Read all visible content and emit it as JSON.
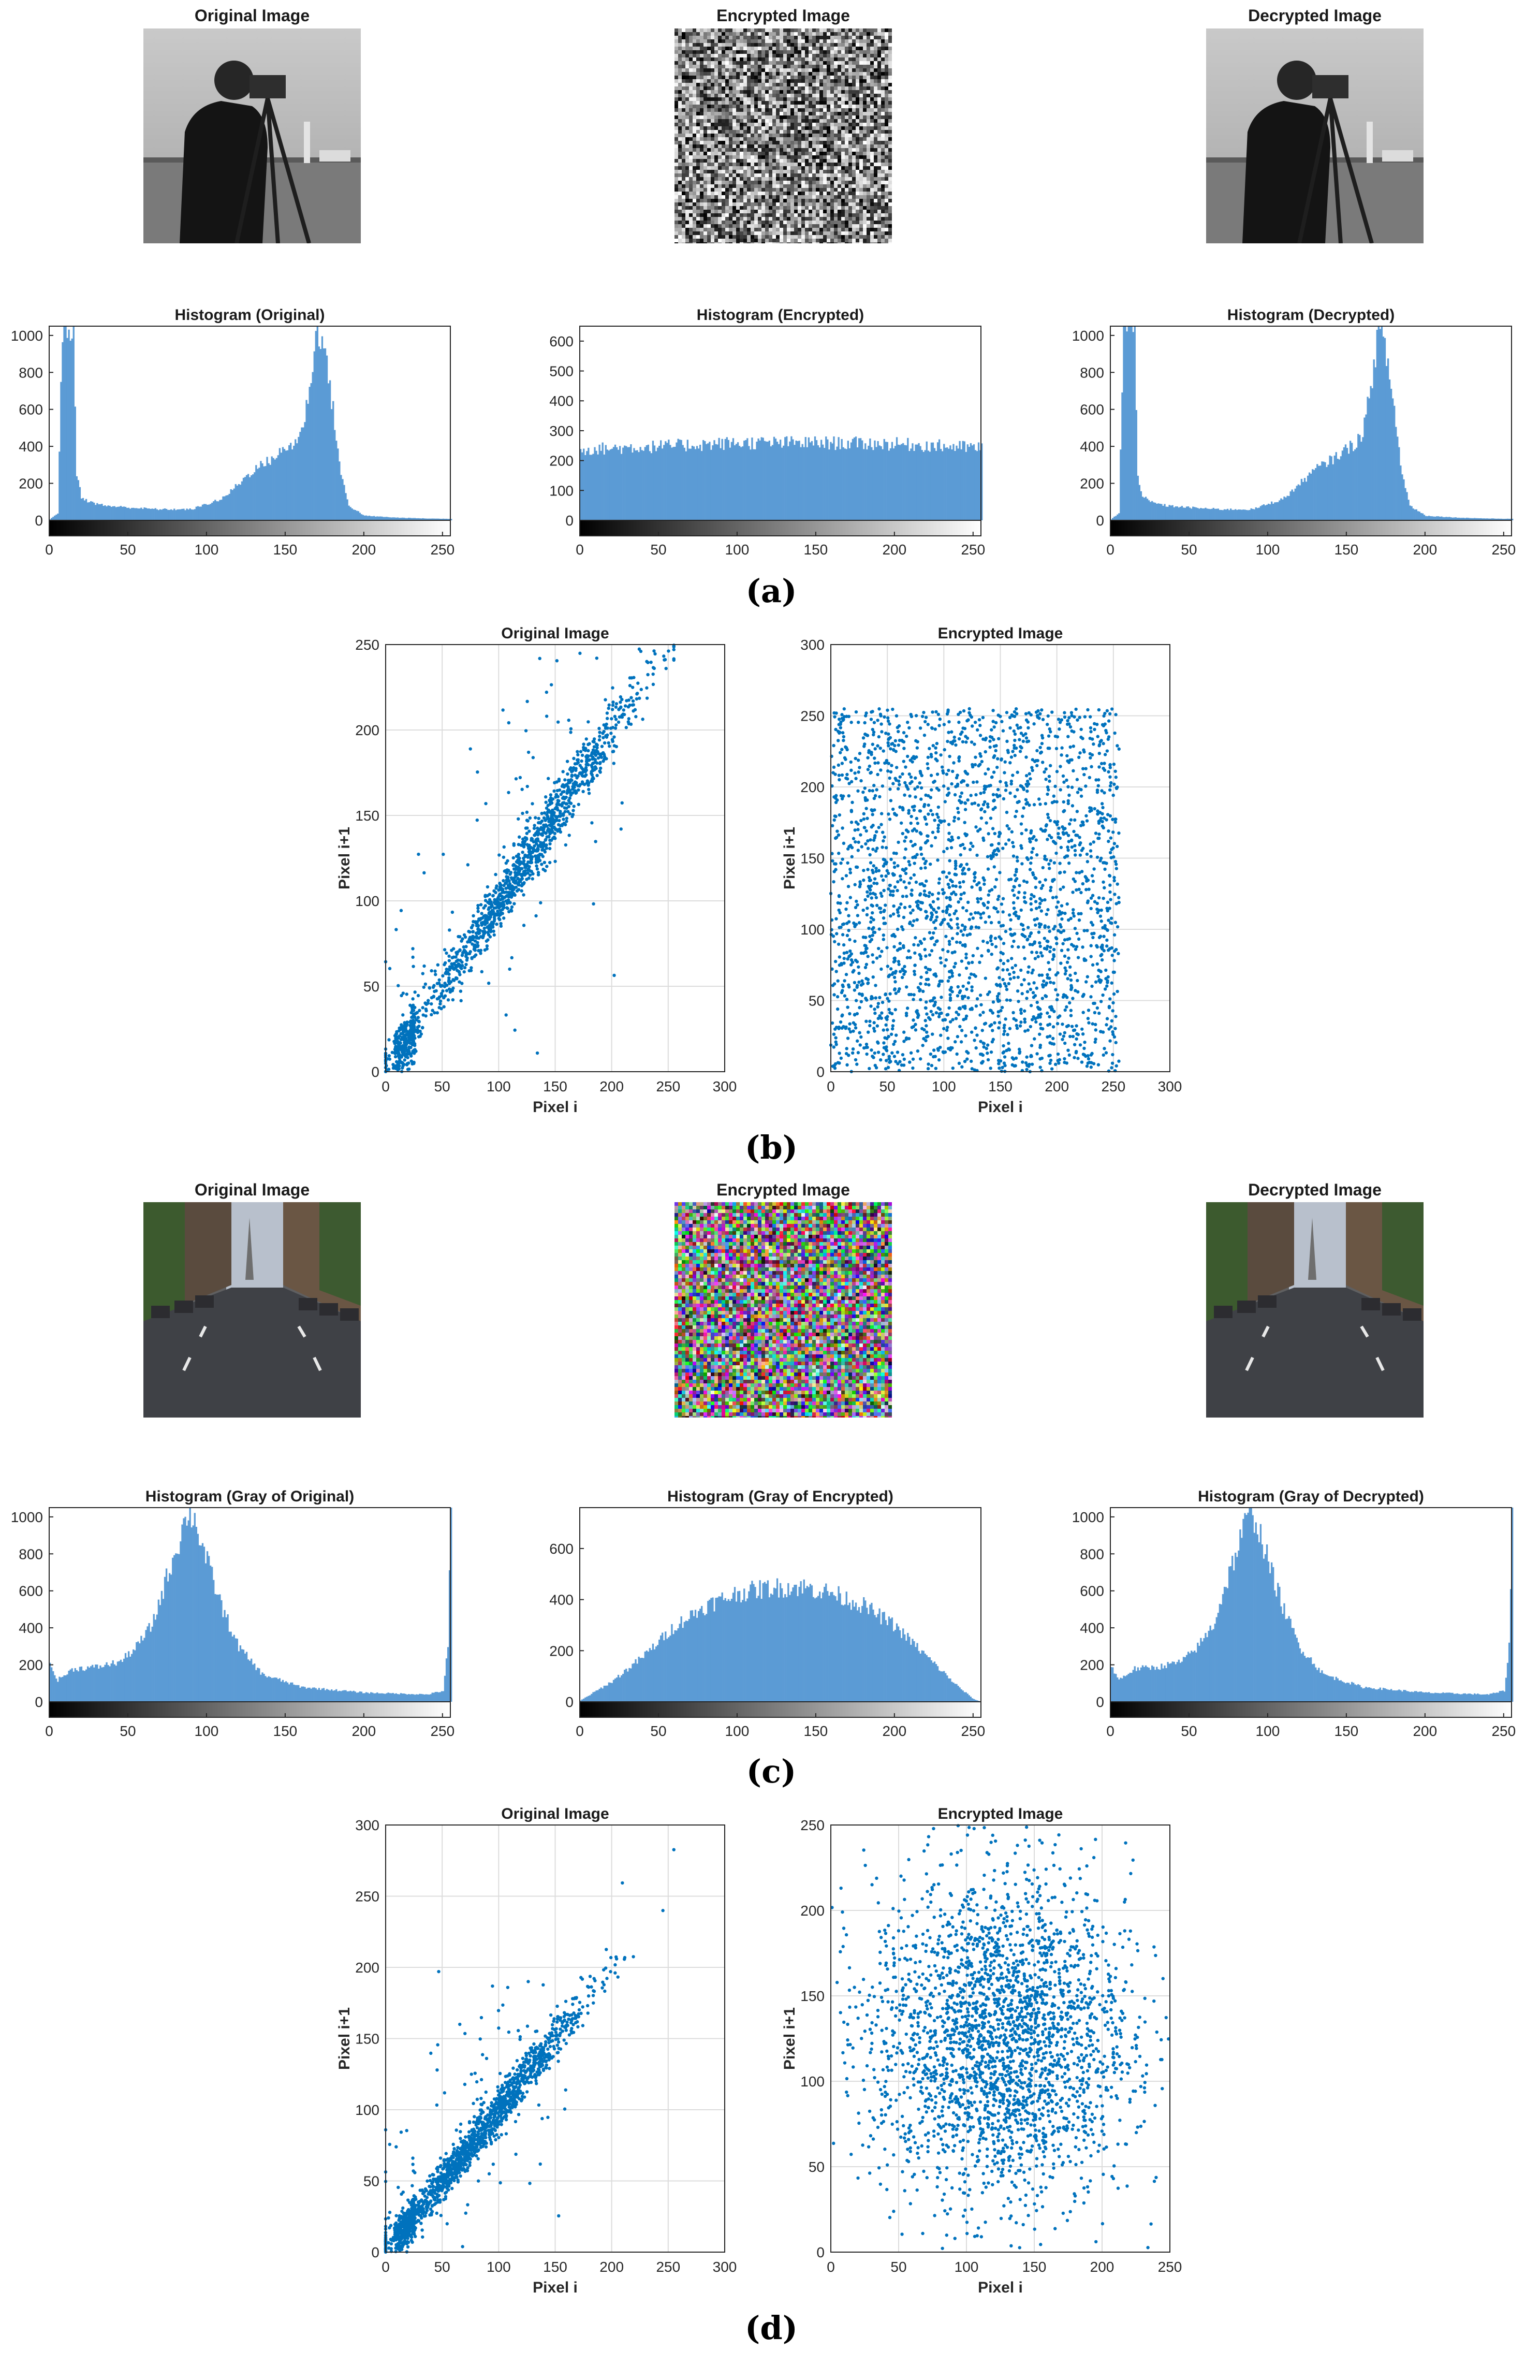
{
  "panels": {
    "a": {
      "label": "(a)",
      "images": [
        {
          "title": "Original Image",
          "kind": "cameraman"
        },
        {
          "title": "Encrypted Image",
          "kind": "noise-gray"
        },
        {
          "title": "Decrypted Image",
          "kind": "cameraman"
        }
      ]
    },
    "b": {
      "label": "(b)"
    },
    "c": {
      "label": "(c)",
      "images": [
        {
          "title": "Original Image",
          "kind": "street"
        },
        {
          "title": "Encrypted Image",
          "kind": "noise-color"
        },
        {
          "title": "Decrypted Image",
          "kind": "street"
        }
      ]
    },
    "d": {
      "label": "(d)"
    }
  },
  "colors": {
    "bar": "#5b9bd5",
    "scatter": "#0072bd",
    "grid": "#dcdcdc",
    "axis": "#262626"
  },
  "chart_data": [
    {
      "id": "hist-a-original",
      "type": "bar",
      "title": "Histogram (Original)",
      "xlim": [
        0,
        255
      ],
      "ylim": [
        0,
        1050
      ],
      "xticks": [
        0,
        50,
        100,
        150,
        200,
        250
      ],
      "yticks": [
        0,
        200,
        400,
        600,
        800,
        1000
      ],
      "profile": [
        [
          0,
          5
        ],
        [
          5,
          40
        ],
        [
          8,
          1050
        ],
        [
          15,
          1050
        ],
        [
          17,
          250
        ],
        [
          20,
          130
        ],
        [
          25,
          100
        ],
        [
          35,
          80
        ],
        [
          50,
          70
        ],
        [
          70,
          60
        ],
        [
          90,
          60
        ],
        [
          100,
          90
        ],
        [
          110,
          120
        ],
        [
          120,
          200
        ],
        [
          130,
          280
        ],
        [
          140,
          330
        ],
        [
          148,
          380
        ],
        [
          155,
          420
        ],
        [
          160,
          480
        ],
        [
          163,
          620
        ],
        [
          167,
          850
        ],
        [
          170,
          1050
        ],
        [
          173,
          1000
        ],
        [
          176,
          850
        ],
        [
          180,
          600
        ],
        [
          185,
          250
        ],
        [
          190,
          80
        ],
        [
          200,
          25
        ],
        [
          220,
          15
        ],
        [
          240,
          10
        ],
        [
          255,
          8
        ]
      ]
    },
    {
      "id": "hist-a-encrypted",
      "type": "bar",
      "title": "Histogram (Encrypted)",
      "xlim": [
        0,
        255
      ],
      "ylim": [
        0,
        650
      ],
      "xticks": [
        0,
        50,
        100,
        150,
        200,
        250
      ],
      "yticks": [
        0,
        100,
        200,
        300,
        400,
        500,
        600
      ],
      "profile": [
        [
          0,
          240
        ],
        [
          50,
          250
        ],
        [
          100,
          262
        ],
        [
          150,
          262
        ],
        [
          200,
          258
        ],
        [
          255,
          245
        ]
      ]
    },
    {
      "id": "hist-a-decrypted",
      "type": "bar",
      "title": "Histogram (Decrypted)",
      "xlim": [
        0,
        255
      ],
      "ylim": [
        0,
        1050
      ],
      "xticks": [
        0,
        50,
        100,
        150,
        200,
        250
      ],
      "yticks": [
        0,
        200,
        400,
        600,
        800,
        1000
      ],
      "profile": [
        [
          0,
          5
        ],
        [
          5,
          40
        ],
        [
          8,
          1050
        ],
        [
          15,
          1050
        ],
        [
          17,
          250
        ],
        [
          20,
          130
        ],
        [
          25,
          100
        ],
        [
          35,
          80
        ],
        [
          50,
          70
        ],
        [
          70,
          60
        ],
        [
          90,
          60
        ],
        [
          100,
          90
        ],
        [
          110,
          120
        ],
        [
          120,
          200
        ],
        [
          130,
          280
        ],
        [
          140,
          330
        ],
        [
          148,
          380
        ],
        [
          155,
          420
        ],
        [
          160,
          480
        ],
        [
          163,
          620
        ],
        [
          167,
          850
        ],
        [
          170,
          1050
        ],
        [
          173,
          1000
        ],
        [
          176,
          850
        ],
        [
          180,
          600
        ],
        [
          185,
          250
        ],
        [
          190,
          80
        ],
        [
          200,
          25
        ],
        [
          220,
          15
        ],
        [
          240,
          10
        ],
        [
          255,
          8
        ]
      ]
    },
    {
      "id": "scatter-b-original",
      "type": "scatter",
      "title": "Original Image",
      "xlabel": "Pixel i",
      "ylabel": "Pixel i+1",
      "xlim": [
        0,
        300
      ],
      "ylim": [
        0,
        250
      ],
      "xticks": [
        0,
        50,
        100,
        150,
        200,
        250,
        300
      ],
      "yticks": [
        0,
        50,
        100,
        150,
        200,
        250
      ],
      "dist": "diagonal",
      "center": [
        120,
        120
      ],
      "spread": [
        8,
        180
      ],
      "n": 1600
    },
    {
      "id": "scatter-b-encrypted",
      "type": "scatter",
      "title": "Encrypted Image",
      "xlabel": "Pixel i",
      "ylabel": "Pixel i+1",
      "xlim": [
        0,
        300
      ],
      "ylim": [
        0,
        300
      ],
      "xticks": [
        0,
        50,
        100,
        150,
        200,
        250,
        300
      ],
      "yticks": [
        0,
        50,
        100,
        150,
        200,
        250,
        300
      ],
      "dist": "uniform",
      "range": [
        0,
        255
      ],
      "n": 2600
    },
    {
      "id": "hist-c-original",
      "type": "bar",
      "title": "Histogram (Gray of Original)",
      "xlim": [
        0,
        255
      ],
      "ylim": [
        0,
        1050
      ],
      "xticks": [
        0,
        50,
        100,
        150,
        200,
        250
      ],
      "yticks": [
        0,
        200,
        400,
        600,
        800,
        1000
      ],
      "profile": [
        [
          0,
          200
        ],
        [
          5,
          120
        ],
        [
          15,
          180
        ],
        [
          30,
          190
        ],
        [
          45,
          220
        ],
        [
          55,
          300
        ],
        [
          65,
          420
        ],
        [
          75,
          700
        ],
        [
          82,
          880
        ],
        [
          88,
          1050
        ],
        [
          92,
          1000
        ],
        [
          100,
          760
        ],
        [
          110,
          500
        ],
        [
          120,
          300
        ],
        [
          135,
          150
        ],
        [
          160,
          80
        ],
        [
          200,
          50
        ],
        [
          240,
          40
        ],
        [
          250,
          60
        ],
        [
          253,
          300
        ],
        [
          255,
          1050
        ]
      ]
    },
    {
      "id": "hist-c-encrypted",
      "type": "bar",
      "title": "Histogram (Gray of Encrypted)",
      "xlim": [
        0,
        255
      ],
      "ylim": [
        0,
        760
      ],
      "xticks": [
        0,
        50,
        100,
        150,
        200,
        250
      ],
      "yticks": [
        0,
        200,
        400,
        600
      ],
      "profile": [
        [
          0,
          5
        ],
        [
          20,
          80
        ],
        [
          40,
          180
        ],
        [
          60,
          300
        ],
        [
          80,
          380
        ],
        [
          100,
          430
        ],
        [
          120,
          450
        ],
        [
          140,
          455
        ],
        [
          160,
          430
        ],
        [
          180,
          380
        ],
        [
          200,
          300
        ],
        [
          220,
          180
        ],
        [
          240,
          60
        ],
        [
          250,
          10
        ],
        [
          255,
          0
        ]
      ]
    },
    {
      "id": "hist-c-decrypted",
      "type": "bar",
      "title": "Histogram (Gray of Decrypted)",
      "xlim": [
        0,
        255
      ],
      "ylim": [
        0,
        1050
      ],
      "xticks": [
        0,
        50,
        100,
        150,
        200,
        250
      ],
      "yticks": [
        0,
        200,
        400,
        600,
        800,
        1000
      ],
      "profile": [
        [
          0,
          200
        ],
        [
          5,
          120
        ],
        [
          15,
          180
        ],
        [
          30,
          190
        ],
        [
          45,
          220
        ],
        [
          55,
          300
        ],
        [
          65,
          420
        ],
        [
          75,
          700
        ],
        [
          82,
          880
        ],
        [
          88,
          1050
        ],
        [
          92,
          1000
        ],
        [
          100,
          760
        ],
        [
          110,
          500
        ],
        [
          120,
          300
        ],
        [
          135,
          150
        ],
        [
          160,
          80
        ],
        [
          200,
          50
        ],
        [
          240,
          40
        ],
        [
          250,
          60
        ],
        [
          253,
          300
        ],
        [
          255,
          1050
        ]
      ]
    },
    {
      "id": "scatter-d-original",
      "type": "scatter",
      "title": "Original Image",
      "xlabel": "Pixel i",
      "ylabel": "Pixel i+1",
      "xlim": [
        0,
        300
      ],
      "ylim": [
        0,
        300
      ],
      "xticks": [
        0,
        50,
        100,
        150,
        200,
        250,
        300
      ],
      "yticks": [
        0,
        50,
        100,
        150,
        200,
        250,
        300
      ],
      "dist": "diagonal",
      "center": [
        80,
        80
      ],
      "spread": [
        7,
        160
      ],
      "n": 1800
    },
    {
      "id": "scatter-d-encrypted",
      "type": "scatter",
      "title": "Encrypted Image",
      "xlabel": "Pixel i",
      "ylabel": "Pixel i+1",
      "xlim": [
        0,
        250
      ],
      "ylim": [
        0,
        250
      ],
      "xticks": [
        0,
        50,
        100,
        150,
        200,
        250
      ],
      "yticks": [
        0,
        50,
        100,
        150,
        200,
        250
      ],
      "dist": "gaussian2d",
      "center": [
        125,
        125
      ],
      "spread": [
        48,
        48
      ],
      "n": 2600
    }
  ]
}
